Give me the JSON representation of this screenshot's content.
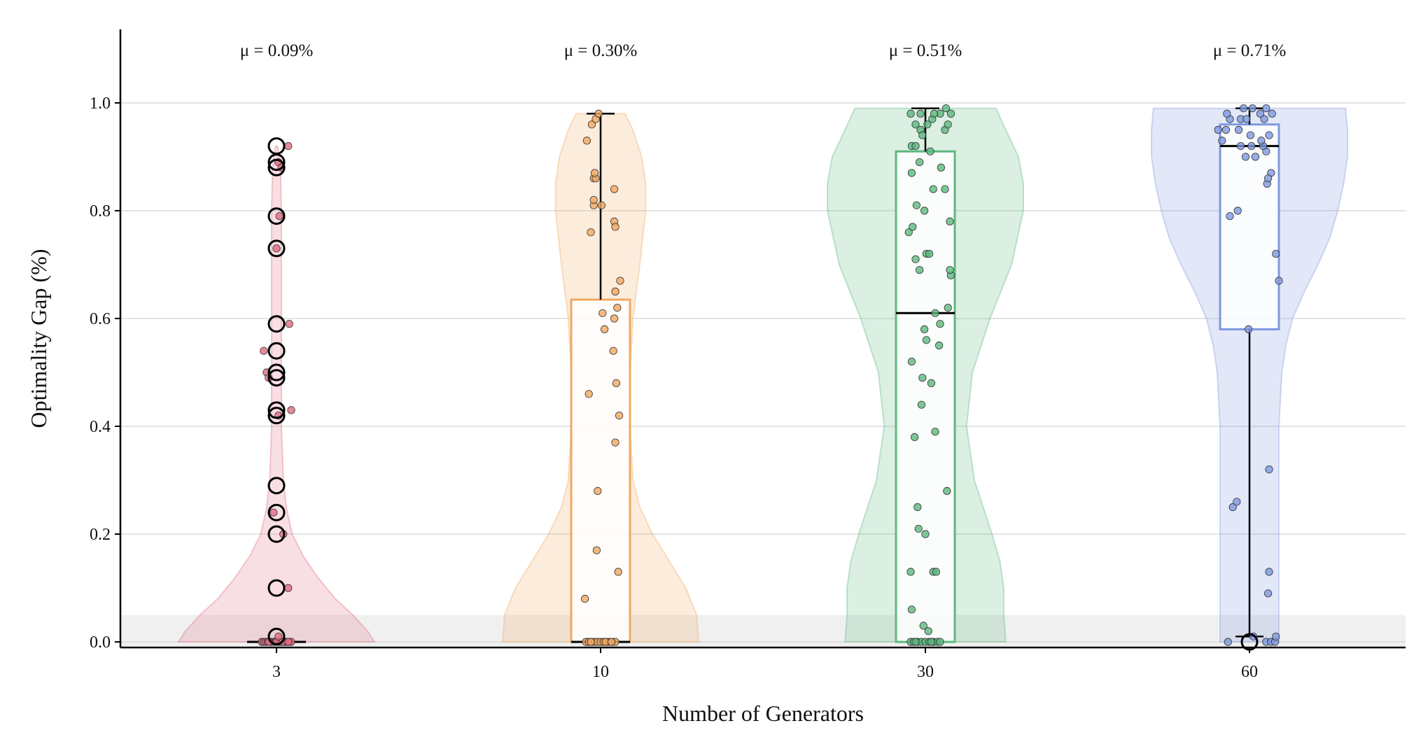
{
  "chart_data": {
    "type": "violin-box-strip",
    "title": "",
    "xlabel": "Number of Generators",
    "ylabel": "Optimality Gap (%)",
    "ylim": [
      -0.01,
      1.14
    ],
    "yticks": [
      "0.0",
      "0.2",
      "0.4",
      "0.6",
      "0.8",
      "1.0"
    ],
    "grid": "horizontal",
    "shaded_band": [
      0.0,
      0.05
    ],
    "categories": [
      "3",
      "10",
      "30",
      "60"
    ],
    "series": [
      {
        "name": "3",
        "color": "#e06c82",
        "mean_label": "μ = 0.09%",
        "box": {
          "q1": 0.0,
          "median": 0.0,
          "q3": 0.0,
          "whisker_low": 0.0,
          "whisker_high": 0.0
        },
        "outliers": [
          0.92,
          0.89,
          0.88,
          0.79,
          0.73,
          0.59,
          0.54,
          0.5,
          0.49,
          0.43,
          0.42,
          0.29,
          0.24,
          0.2,
          0.1,
          0.01
        ],
        "violin": {
          "y": [
            0.0,
            0.02,
            0.05,
            0.08,
            0.12,
            0.16,
            0.2,
            0.25,
            0.3,
            0.4,
            0.5,
            0.6,
            0.7,
            0.8,
            0.88,
            0.92
          ],
          "w": [
            1.0,
            0.93,
            0.78,
            0.6,
            0.42,
            0.27,
            0.16,
            0.1,
            0.07,
            0.05,
            0.05,
            0.05,
            0.05,
            0.05,
            0.04,
            0.01
          ]
        },
        "points": [
          [
            -0.3,
            0
          ],
          [
            -0.26,
            0
          ],
          [
            -0.22,
            0
          ],
          [
            -0.18,
            0
          ],
          [
            -0.14,
            0
          ],
          [
            -0.1,
            0
          ],
          [
            -0.06,
            0
          ],
          [
            -0.02,
            0
          ],
          [
            0.02,
            0
          ],
          [
            0.06,
            0
          ],
          [
            0.1,
            0
          ],
          [
            0.14,
            0
          ],
          [
            0.18,
            0
          ],
          [
            0.22,
            0
          ],
          [
            0.26,
            0
          ],
          [
            0.3,
            0
          ],
          [
            -0.16,
            0
          ],
          [
            0.0,
            0
          ],
          [
            0.12,
            0
          ],
          [
            0.24,
            0
          ],
          [
            0.04,
            0.01
          ],
          [
            0.24,
            0.92
          ],
          [
            0.04,
            0.89
          ],
          [
            0.1,
            0.88
          ],
          [
            0.06,
            0.79
          ],
          [
            0.0,
            0.73
          ],
          [
            0.26,
            0.59
          ],
          [
            -0.26,
            0.54
          ],
          [
            -0.2,
            0.5
          ],
          [
            -0.16,
            0.49
          ],
          [
            0.3,
            0.43
          ],
          [
            0.04,
            0.42
          ],
          [
            -0.06,
            0.24
          ],
          [
            0.14,
            0.2
          ],
          [
            0.24,
            0.1
          ]
        ]
      },
      {
        "name": "10",
        "color": "#f0a860",
        "mean_label": "μ = 0.30%",
        "box": {
          "q1": 0.0,
          "median": 0.0,
          "q3": 0.635,
          "whisker_low": 0.0,
          "whisker_high": 0.98
        },
        "outliers": [],
        "violin": {
          "y": [
            0.0,
            0.05,
            0.1,
            0.15,
            0.2,
            0.25,
            0.3,
            0.4,
            0.5,
            0.6,
            0.7,
            0.8,
            0.85,
            0.9,
            0.95,
            0.98
          ],
          "w": [
            1.0,
            0.98,
            0.87,
            0.7,
            0.53,
            0.4,
            0.33,
            0.3,
            0.3,
            0.33,
            0.4,
            0.46,
            0.46,
            0.42,
            0.33,
            0.25
          ]
        },
        "points": [
          [
            -0.3,
            0
          ],
          [
            -0.24,
            0
          ],
          [
            -0.18,
            0
          ],
          [
            -0.12,
            0
          ],
          [
            -0.06,
            0
          ],
          [
            0.0,
            0
          ],
          [
            0.06,
            0
          ],
          [
            0.12,
            0
          ],
          [
            0.18,
            0
          ],
          [
            0.24,
            0
          ],
          [
            0.3,
            0
          ],
          [
            -0.2,
            0
          ],
          [
            0.1,
            0
          ],
          [
            0.22,
            0
          ],
          [
            -0.32,
            0.08
          ],
          [
            -0.08,
            0.17
          ],
          [
            -0.06,
            0.28
          ],
          [
            0.36,
            0.13
          ],
          [
            0.3,
            0.37
          ],
          [
            0.32,
            0.48
          ],
          [
            0.38,
            0.42
          ],
          [
            -0.24,
            0.46
          ],
          [
            0.26,
            0.54
          ],
          [
            0.34,
            0.62
          ],
          [
            0.28,
            0.6
          ],
          [
            0.4,
            0.67
          ],
          [
            0.3,
            0.65
          ],
          [
            0.08,
            0.58
          ],
          [
            0.04,
            0.61
          ],
          [
            -0.2,
            0.76
          ],
          [
            -0.14,
            0.81
          ],
          [
            0.02,
            0.81
          ],
          [
            0.28,
            0.78
          ],
          [
            0.3,
            0.77
          ],
          [
            -0.14,
            0.82
          ],
          [
            -0.14,
            0.86
          ],
          [
            -0.1,
            0.86
          ],
          [
            -0.12,
            0.87
          ],
          [
            0.28,
            0.84
          ],
          [
            -0.28,
            0.93
          ],
          [
            -0.18,
            0.96
          ],
          [
            -0.1,
            0.97
          ],
          [
            -0.04,
            0.98
          ]
        ]
      },
      {
        "name": "30",
        "color": "#5cb87e",
        "mean_label": "μ = 0.51%",
        "box": {
          "q1": 0.0,
          "median": 0.61,
          "q3": 0.91,
          "whisker_low": 0.0,
          "whisker_high": 0.99
        },
        "outliers": [],
        "violin": {
          "y": [
            0.0,
            0.05,
            0.1,
            0.15,
            0.2,
            0.3,
            0.4,
            0.5,
            0.6,
            0.7,
            0.8,
            0.85,
            0.9,
            0.95,
            0.99
          ],
          "w": [
            0.82,
            0.8,
            0.8,
            0.76,
            0.68,
            0.5,
            0.42,
            0.48,
            0.66,
            0.88,
            1.0,
            1.0,
            0.95,
            0.82,
            0.72
          ]
        },
        "points": [
          [
            -0.3,
            0
          ],
          [
            -0.24,
            0
          ],
          [
            -0.16,
            0
          ],
          [
            -0.08,
            0
          ],
          [
            0.0,
            0
          ],
          [
            0.08,
            0
          ],
          [
            0.16,
            0
          ],
          [
            0.24,
            0
          ],
          [
            0.3,
            0
          ],
          [
            -0.2,
            0
          ],
          [
            0.12,
            0
          ],
          [
            -0.28,
            0.06
          ],
          [
            -0.04,
            0.03
          ],
          [
            0.06,
            0.02
          ],
          [
            -0.3,
            0.13
          ],
          [
            0.16,
            0.13
          ],
          [
            0.22,
            0.13
          ],
          [
            -0.14,
            0.21
          ],
          [
            -0.16,
            0.25
          ],
          [
            0.0,
            0.2
          ],
          [
            0.44,
            0.28
          ],
          [
            -0.22,
            0.38
          ],
          [
            0.2,
            0.39
          ],
          [
            -0.28,
            0.52
          ],
          [
            -0.08,
            0.44
          ],
          [
            -0.06,
            0.49
          ],
          [
            0.12,
            0.48
          ],
          [
            0.28,
            0.55
          ],
          [
            0.3,
            0.59
          ],
          [
            0.02,
            0.56
          ],
          [
            -0.02,
            0.58
          ],
          [
            0.46,
            0.62
          ],
          [
            0.2,
            0.61
          ],
          [
            0.52,
            0.68
          ],
          [
            0.5,
            0.69
          ],
          [
            -0.12,
            0.69
          ],
          [
            -0.2,
            0.71
          ],
          [
            0.02,
            0.72
          ],
          [
            0.08,
            0.72
          ],
          [
            -0.34,
            0.76
          ],
          [
            -0.26,
            0.77
          ],
          [
            0.5,
            0.78
          ],
          [
            -0.18,
            0.81
          ],
          [
            0.16,
            0.84
          ],
          [
            0.4,
            0.84
          ],
          [
            -0.02,
            0.8
          ],
          [
            -0.28,
            0.87
          ],
          [
            -0.12,
            0.89
          ],
          [
            0.32,
            0.88
          ],
          [
            -0.28,
            0.92
          ],
          [
            -0.2,
            0.92
          ],
          [
            0.1,
            0.91
          ],
          [
            -0.2,
            0.96
          ],
          [
            -0.1,
            0.95
          ],
          [
            -0.06,
            0.94
          ],
          [
            0.04,
            0.96
          ],
          [
            0.14,
            0.97
          ],
          [
            0.3,
            0.98
          ],
          [
            0.4,
            0.95
          ],
          [
            0.46,
            0.96
          ],
          [
            -0.3,
            0.98
          ],
          [
            -0.1,
            0.98
          ],
          [
            0.18,
            0.98
          ],
          [
            0.42,
            0.99
          ],
          [
            0.52,
            0.98
          ]
        ]
      },
      {
        "name": "60",
        "color": "#7e98e0",
        "mean_label": "μ = 0.71%",
        "box": {
          "q1": 0.58,
          "median": 0.92,
          "q3": 0.96,
          "whisker_low": 0.01,
          "whisker_high": 0.99
        },
        "outliers": [
          0.0
        ],
        "violin": {
          "y": [
            0.0,
            0.05,
            0.1,
            0.2,
            0.3,
            0.4,
            0.5,
            0.55,
            0.6,
            0.65,
            0.7,
            0.75,
            0.8,
            0.85,
            0.9,
            0.95,
            0.99
          ],
          "w": [
            0.3,
            0.3,
            0.3,
            0.3,
            0.3,
            0.3,
            0.33,
            0.37,
            0.44,
            0.56,
            0.7,
            0.82,
            0.9,
            0.96,
            1.0,
            1.0,
            0.98
          ]
        },
        "points": [
          [
            -0.44,
            0
          ],
          [
            0.34,
            0
          ],
          [
            0.44,
            0
          ],
          [
            0.52,
            0
          ],
          [
            0.08,
            0.01
          ],
          [
            0.54,
            0.01
          ],
          [
            0.38,
            0.09
          ],
          [
            0.4,
            0.13
          ],
          [
            -0.34,
            0.25
          ],
          [
            -0.26,
            0.26
          ],
          [
            0.4,
            0.32
          ],
          [
            -0.02,
            0.58
          ],
          [
            -0.4,
            0.79
          ],
          [
            -0.24,
            0.8
          ],
          [
            0.54,
            0.72
          ],
          [
            0.6,
            0.67
          ],
          [
            0.44,
            0.87
          ],
          [
            0.36,
            0.85
          ],
          [
            0.38,
            0.86
          ],
          [
            -0.08,
            0.9
          ],
          [
            0.04,
            0.92
          ],
          [
            0.12,
            0.9
          ],
          [
            0.34,
            0.91
          ],
          [
            -0.18,
            0.92
          ],
          [
            0.28,
            0.92
          ],
          [
            -0.64,
            0.95
          ],
          [
            -0.56,
            0.93
          ],
          [
            -0.48,
            0.95
          ],
          [
            -0.22,
            0.95
          ],
          [
            0.02,
            0.94
          ],
          [
            0.24,
            0.93
          ],
          [
            0.4,
            0.94
          ],
          [
            -0.4,
            0.97
          ],
          [
            -0.18,
            0.97
          ],
          [
            -0.06,
            0.97
          ],
          [
            -0.46,
            0.98
          ],
          [
            -0.12,
            0.99
          ],
          [
            0.06,
            0.99
          ],
          [
            0.3,
            0.97
          ],
          [
            0.34,
            0.99
          ],
          [
            0.46,
            0.98
          ],
          [
            0.22,
            0.98
          ]
        ]
      }
    ]
  }
}
